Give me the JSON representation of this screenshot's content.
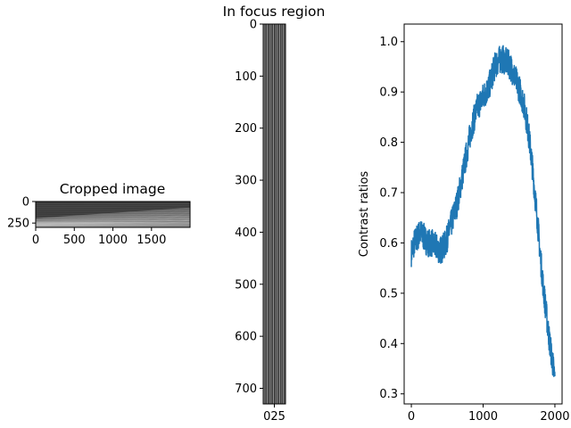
{
  "chart_data": [
    {
      "type": "heatmap",
      "title": "Cropped image",
      "xlabel": "",
      "ylabel": "",
      "xlim": [
        0,
        1999
      ],
      "ylim": [
        300,
        0
      ],
      "x_ticks": [
        0,
        500,
        1000,
        1500
      ],
      "y_ticks": [
        0,
        250
      ],
      "colormap": "gray",
      "description_values": {
        "stripe_count": 24,
        "lower_band_start_row": 260
      }
    },
    {
      "type": "heatmap",
      "title": "In focus region",
      "xlabel": "",
      "ylabel": "",
      "xlim": [
        0,
        40
      ],
      "ylim": [
        730,
        0
      ],
      "x_ticks": [
        "025"
      ],
      "y_ticks": [
        0,
        100,
        200,
        300,
        400,
        500,
        600,
        700
      ],
      "colormap": "gray",
      "description_values": {
        "stripe_count": 14
      }
    },
    {
      "type": "line",
      "title": "",
      "xlabel": "",
      "ylabel": "Contrast ratios",
      "xlim": [
        -100,
        2100
      ],
      "ylim": [
        0.28,
        1.035
      ],
      "x_ticks": [
        0,
        1000,
        2000
      ],
      "y_ticks": [
        0.3,
        0.4,
        0.5,
        0.6,
        0.7,
        0.8,
        0.9,
        1.0
      ],
      "line_color": "#1f77b4",
      "noise_amplitude": 0.028,
      "series": [
        {
          "name": "",
          "x": [
            0,
            40,
            80,
            120,
            160,
            200,
            240,
            280,
            320,
            360,
            400,
            440,
            480,
            520,
            560,
            600,
            640,
            680,
            720,
            760,
            800,
            840,
            880,
            920,
            960,
            1000,
            1040,
            1080,
            1120,
            1160,
            1200,
            1240,
            1280,
            1320,
            1360,
            1400,
            1440,
            1480,
            1520,
            1560,
            1600,
            1640,
            1680,
            1720,
            1760,
            1800,
            1840,
            1880,
            1920,
            1960,
            2000
          ],
          "y": [
            0.58,
            0.6,
            0.61,
            0.62,
            0.615,
            0.605,
            0.6,
            0.6,
            0.595,
            0.59,
            0.585,
            0.59,
            0.6,
            0.62,
            0.64,
            0.66,
            0.68,
            0.71,
            0.74,
            0.77,
            0.8,
            0.83,
            0.85,
            0.87,
            0.88,
            0.89,
            0.9,
            0.91,
            0.93,
            0.95,
            0.96,
            0.965,
            0.965,
            0.96,
            0.955,
            0.945,
            0.93,
            0.915,
            0.9,
            0.88,
            0.85,
            0.81,
            0.76,
            0.7,
            0.64,
            0.57,
            0.51,
            0.46,
            0.41,
            0.37,
            0.33
          ]
        }
      ]
    }
  ]
}
